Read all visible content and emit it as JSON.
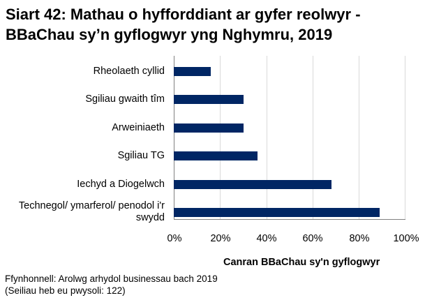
{
  "chart_data": {
    "type": "bar",
    "orientation": "horizontal",
    "title": "Siart 42: Mathau o hyfforddiant ar gyfer reolwyr - BBaChau sy’n gyflogwyr yng Nghymru, 2019",
    "title_lines": [
      "Siart 42: Mathau o hyfforddiant ar gyfer reolwyr -",
      "BBaChau sy’n gyflogwyr yng Nghymru, 2019"
    ],
    "categories": [
      "Rheolaeth cyllid",
      "Sgiliau gwaith tîm",
      "Arweiniaeth",
      "Sgiliau TG",
      "Iechyd a Diogelwch",
      "Technegol/ ymarferol/ penodol i'r swydd"
    ],
    "values": [
      16,
      30,
      30,
      36,
      68,
      89
    ],
    "xlabel": "Canran BBaChau sy'n gyflogwyr",
    "ylabel": "",
    "xlim": [
      0,
      100
    ],
    "x_ticks": [
      "0%",
      "20%",
      "40%",
      "60%",
      "80%",
      "100%"
    ],
    "grid": true,
    "legend": null,
    "bar_color": "#002664"
  },
  "footer": {
    "source": "Ffynhonnell: Arolwg arhydol businessau bach 2019",
    "base": "(Seiliau heb eu pwysoli: 122)"
  }
}
